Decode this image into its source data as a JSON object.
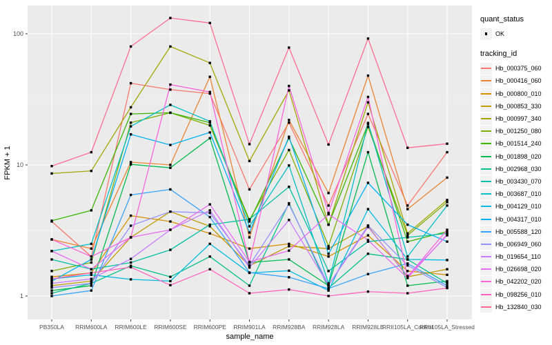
{
  "figure": {
    "kind": "ggplot-line-chart"
  },
  "chart_data": {
    "type": "line",
    "title": "",
    "xlabel": "sample_name",
    "ylabel": "FPKM + 1",
    "y_scale": "log10",
    "y_ticks": [
      "1",
      "10",
      "100"
    ],
    "y_tick_values": [
      1,
      10,
      100
    ],
    "y_minor_values": [
      3.162,
      31.62
    ],
    "ylim_log": [
      0.66,
      168
    ],
    "grid": "white major and minor on gray panel",
    "panel_bg": "#EBEBEB",
    "legend_position": "right",
    "categories": [
      "PB350LA",
      "RRIM600LA",
      "RRIM600LE",
      "RRIM600SE",
      "RRIM600PE",
      "RRIM901LA",
      "RRIM928BA",
      "RRIM928LA",
      "RRIM928LE",
      "RRII105LA_Control",
      "RRII105LA_Stressed"
    ],
    "series": [
      {
        "name": "Hb_000375_060",
        "color": "#F8766D",
        "values": [
          3.7,
          2.0,
          42,
          37.5,
          35,
          6.5,
          21,
          4.9,
          24.5,
          4.9,
          12.5
        ]
      },
      {
        "name": "Hb_000416_060",
        "color": "#EA8331",
        "values": [
          2.7,
          2.3,
          10.5,
          10.0,
          47,
          2.8,
          22,
          6.1,
          48,
          4.6,
          8.0
        ]
      },
      {
        "name": "Hb_000800_010",
        "color": "#D89000",
        "values": [
          1.4,
          1.5,
          4.1,
          3.7,
          3.0,
          2.3,
          2.5,
          2.0,
          2.9,
          1.55,
          1.45
        ]
      },
      {
        "name": "Hb_000853_330",
        "color": "#C09B00",
        "values": [
          1.2,
          1.3,
          2.8,
          4.4,
          3.4,
          1.7,
          2.4,
          2.3,
          3.4,
          1.4,
          1.6
        ]
      },
      {
        "name": "Hb_000997_340",
        "color": "#A3A500",
        "values": [
          8.6,
          9.0,
          27.5,
          80,
          60,
          10.7,
          37,
          3.5,
          30,
          3.0,
          5.4
        ]
      },
      {
        "name": "Hb_001250_080",
        "color": "#7CAE00",
        "values": [
          1.55,
          1.8,
          21,
          25,
          20,
          3.8,
          13,
          2.4,
          19.5,
          2.9,
          5.2
        ]
      },
      {
        "name": "Hb_001514_240",
        "color": "#39B600",
        "values": [
          3.75,
          4.5,
          24.5,
          25,
          21,
          3.7,
          16,
          3.5,
          20.5,
          2.6,
          3.1
        ]
      },
      {
        "name": "Hb_001898_020",
        "color": "#00BB4E",
        "values": [
          1.1,
          1.2,
          10.1,
          9.5,
          16,
          1.8,
          1.9,
          1.2,
          12.5,
          1.2,
          1.3
        ]
      },
      {
        "name": "Hb_002968_030",
        "color": "#00C08B",
        "values": [
          1.05,
          1.25,
          1.7,
          1.4,
          2.0,
          1.2,
          5.1,
          1.15,
          2.1,
          1.9,
          1.25
        ]
      },
      {
        "name": "Hb_003430_070",
        "color": "#00C1A3",
        "values": [
          1.9,
          1.6,
          1.8,
          2.25,
          3.5,
          3.85,
          6.8,
          1.55,
          2.6,
          2.8,
          3.0
        ]
      },
      {
        "name": "Hb_003687_010",
        "color": "#00BFC4",
        "values": [
          2.2,
          2.5,
          19.7,
          28.7,
          21.5,
          3.4,
          9.9,
          1.25,
          20.9,
          2.0,
          4.9
        ]
      },
      {
        "name": "Hb_004129_010",
        "color": "#00BAE0",
        "values": [
          1.35,
          1.45,
          1.34,
          1.3,
          2.5,
          1.5,
          1.56,
          1.1,
          4.6,
          1.9,
          1.88
        ]
      },
      {
        "name": "Hb_004317_010",
        "color": "#00B0F6",
        "values": [
          1.3,
          1.9,
          17.1,
          14.2,
          17.7,
          3.05,
          16.4,
          2.1,
          7.3,
          3.5,
          2.6
        ]
      },
      {
        "name": "Hb_005588_120",
        "color": "#35A2FF",
        "values": [
          1.0,
          1.1,
          5.9,
          6.5,
          4.0,
          1.51,
          1.39,
          1.14,
          1.47,
          1.77,
          1.2
        ]
      },
      {
        "name": "Hb_006949_060",
        "color": "#9590FF",
        "values": [
          1.16,
          1.25,
          3.44,
          4.4,
          4.3,
          1.71,
          5.0,
          1.21,
          3.45,
          1.71,
          1.16
        ]
      },
      {
        "name": "Hb_019654_110",
        "color": "#C77CFF",
        "values": [
          1.25,
          1.35,
          1.92,
          3.2,
          4.5,
          1.65,
          3.8,
          1.21,
          3.36,
          1.42,
          2.9
        ]
      },
      {
        "name": "Hb_026698_020",
        "color": "#E76BF3",
        "values": [
          2.2,
          1.6,
          2.8,
          3.2,
          5.0,
          1.82,
          2.22,
          4.2,
          2.67,
          1.37,
          2.95
        ]
      },
      {
        "name": "Hb_042202_020",
        "color": "#FA62DB",
        "values": [
          2.7,
          2.0,
          2.8,
          41,
          36,
          1.8,
          40,
          4.3,
          33,
          1.4,
          3.2
        ]
      },
      {
        "name": "Hb_098256_010",
        "color": "#FF62BC",
        "values": [
          1.35,
          1.5,
          1.66,
          1.21,
          1.6,
          1.05,
          1.12,
          1.0,
          1.08,
          1.05,
          1.15
        ]
      },
      {
        "name": "Hb_132840_030",
        "color": "#FF6A98",
        "values": [
          9.8,
          12.5,
          80,
          132,
          121,
          14.4,
          78.5,
          14.3,
          92,
          13.5,
          14.5
        ]
      }
    ],
    "legend": {
      "quant_status_title": "quant_status",
      "quant_status_items": [
        {
          "label": "OK",
          "marker": "black-point"
        }
      ],
      "tracking_id_title": "tracking_id"
    },
    "marker": {
      "shape": "small-black-square",
      "color": "#000000"
    }
  }
}
